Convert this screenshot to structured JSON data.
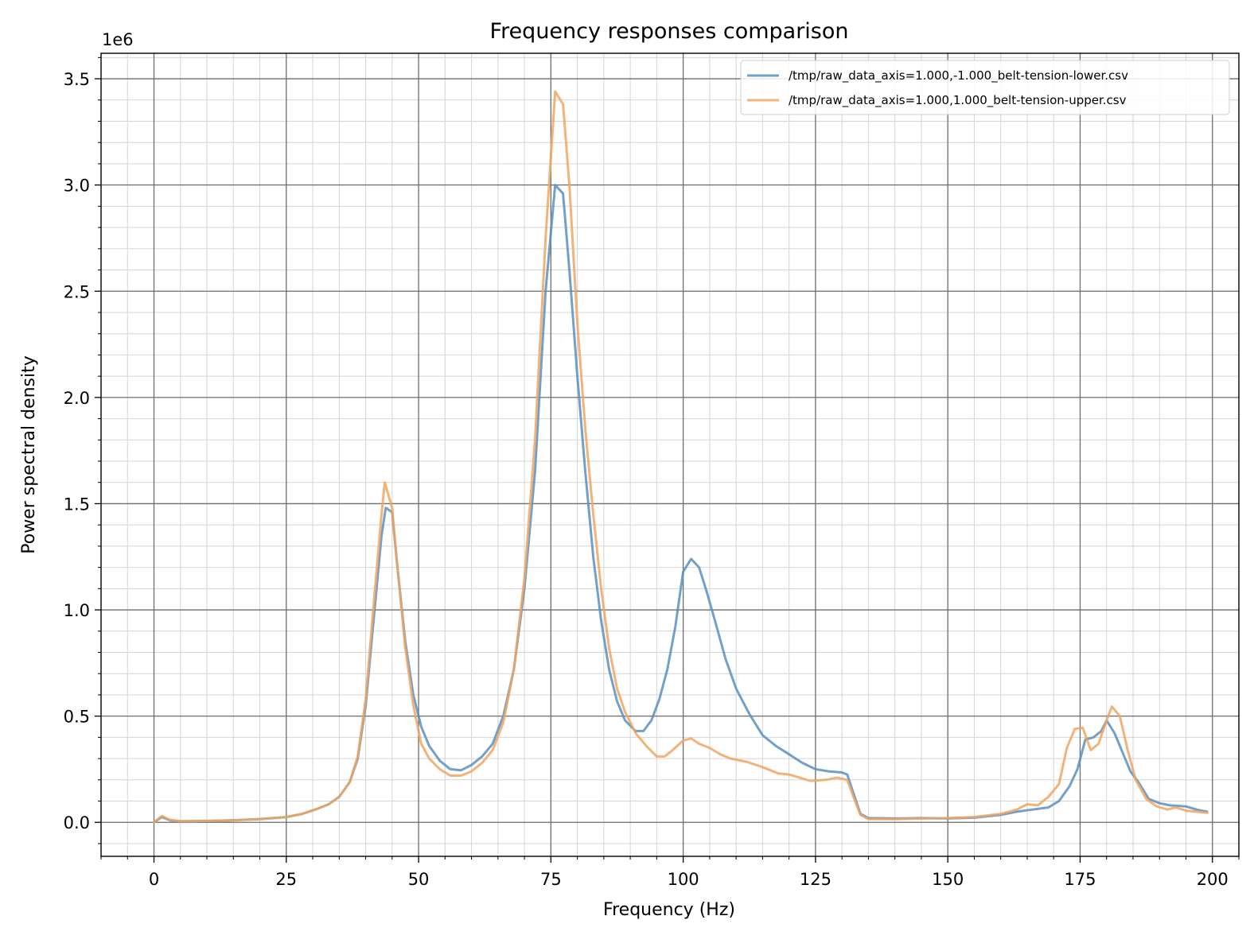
{
  "chart_data": {
    "type": "line",
    "title": "Frequency responses comparison",
    "xlabel": "Frequency (Hz)",
    "ylabel": "Power spectral density",
    "y_scale_label": "1e6",
    "xlim": [
      -10,
      205
    ],
    "ylim": [
      -0.16,
      3.62
    ],
    "x_ticks": [
      0,
      25,
      50,
      75,
      100,
      125,
      150,
      175,
      200
    ],
    "x_tick_labels": [
      "0",
      "25",
      "50",
      "75",
      "100",
      "125",
      "150",
      "175",
      "200"
    ],
    "y_ticks": [
      0.0,
      0.5,
      1.0,
      1.5,
      2.0,
      2.5,
      3.0,
      3.5
    ],
    "y_tick_labels": [
      "0.0",
      "0.5",
      "1.0",
      "1.5",
      "2.0",
      "2.5",
      "3.0",
      "3.5"
    ],
    "grid": true,
    "minor_grid": true,
    "legend_position": "top-right",
    "series": [
      {
        "name": "/tmp/raw_data_axis=1.000,-1.000_belt-tension-lower.csv",
        "color": "#5b8fc0",
        "points": [
          [
            0,
            0.0
          ],
          [
            1.5,
            0.025
          ],
          [
            3,
            0.01
          ],
          [
            5,
            0.005
          ],
          [
            10,
            0.006
          ],
          [
            15,
            0.01
          ],
          [
            20,
            0.015
          ],
          [
            25,
            0.025
          ],
          [
            28,
            0.04
          ],
          [
            31,
            0.065
          ],
          [
            33,
            0.085
          ],
          [
            35,
            0.12
          ],
          [
            37,
            0.19
          ],
          [
            38.5,
            0.3
          ],
          [
            40,
            0.55
          ],
          [
            41.5,
            0.95
          ],
          [
            43,
            1.35
          ],
          [
            43.8,
            1.48
          ],
          [
            45,
            1.46
          ],
          [
            46,
            1.2
          ],
          [
            47.5,
            0.85
          ],
          [
            49,
            0.6
          ],
          [
            50.5,
            0.45
          ],
          [
            52,
            0.36
          ],
          [
            54,
            0.29
          ],
          [
            56,
            0.25
          ],
          [
            58,
            0.245
          ],
          [
            60,
            0.27
          ],
          [
            62,
            0.31
          ],
          [
            64,
            0.37
          ],
          [
            66,
            0.5
          ],
          [
            68,
            0.72
          ],
          [
            70,
            1.1
          ],
          [
            72,
            1.65
          ],
          [
            74,
            2.5
          ],
          [
            75.8,
            3.0
          ],
          [
            77.3,
            2.96
          ],
          [
            78.5,
            2.6
          ],
          [
            80,
            2.1
          ],
          [
            81.5,
            1.65
          ],
          [
            83,
            1.25
          ],
          [
            84.5,
            0.95
          ],
          [
            86,
            0.72
          ],
          [
            87.5,
            0.57
          ],
          [
            89,
            0.48
          ],
          [
            91,
            0.43
          ],
          [
            92.5,
            0.43
          ],
          [
            94,
            0.48
          ],
          [
            95.5,
            0.58
          ],
          [
            97,
            0.72
          ],
          [
            98.5,
            0.92
          ],
          [
            100,
            1.18
          ],
          [
            101.5,
            1.24
          ],
          [
            103,
            1.2
          ],
          [
            104.5,
            1.08
          ],
          [
            106,
            0.95
          ],
          [
            108,
            0.77
          ],
          [
            110,
            0.63
          ],
          [
            112.5,
            0.51
          ],
          [
            115,
            0.41
          ],
          [
            117.5,
            0.36
          ],
          [
            120,
            0.32
          ],
          [
            122.5,
            0.28
          ],
          [
            125,
            0.25
          ],
          [
            127.5,
            0.24
          ],
          [
            130,
            0.235
          ],
          [
            131,
            0.225
          ],
          [
            132,
            0.15
          ],
          [
            133.5,
            0.04
          ],
          [
            135,
            0.02
          ],
          [
            140,
            0.018
          ],
          [
            145,
            0.02
          ],
          [
            150,
            0.018
          ],
          [
            155,
            0.022
          ],
          [
            160,
            0.035
          ],
          [
            163,
            0.05
          ],
          [
            166,
            0.06
          ],
          [
            169,
            0.07
          ],
          [
            171,
            0.1
          ],
          [
            173,
            0.17
          ],
          [
            174.5,
            0.25
          ],
          [
            176,
            0.39
          ],
          [
            177.5,
            0.4
          ],
          [
            179,
            0.43
          ],
          [
            180,
            0.48
          ],
          [
            181.5,
            0.42
          ],
          [
            183,
            0.33
          ],
          [
            184.5,
            0.24
          ],
          [
            186,
            0.19
          ],
          [
            188,
            0.11
          ],
          [
            190,
            0.09
          ],
          [
            192,
            0.08
          ],
          [
            195,
            0.075
          ],
          [
            197,
            0.06
          ],
          [
            199,
            0.05
          ]
        ]
      },
      {
        "name": "/tmp/raw_data_axis=1.000,1.000_belt-tension-upper.csv",
        "color": "#f0a560",
        "points": [
          [
            0,
            0.0
          ],
          [
            1.5,
            0.03
          ],
          [
            3,
            0.012
          ],
          [
            5,
            0.005
          ],
          [
            10,
            0.007
          ],
          [
            15,
            0.01
          ],
          [
            20,
            0.016
          ],
          [
            25,
            0.025
          ],
          [
            28,
            0.04
          ],
          [
            31,
            0.065
          ],
          [
            33,
            0.085
          ],
          [
            35,
            0.12
          ],
          [
            37,
            0.19
          ],
          [
            38.5,
            0.31
          ],
          [
            40,
            0.58
          ],
          [
            41.5,
            1.02
          ],
          [
            43,
            1.45
          ],
          [
            43.6,
            1.6
          ],
          [
            45,
            1.48
          ],
          [
            46,
            1.2
          ],
          [
            47.5,
            0.82
          ],
          [
            49,
            0.55
          ],
          [
            50.5,
            0.37
          ],
          [
            52,
            0.3
          ],
          [
            54,
            0.25
          ],
          [
            56,
            0.22
          ],
          [
            58,
            0.22
          ],
          [
            60,
            0.24
          ],
          [
            62,
            0.28
          ],
          [
            64,
            0.34
          ],
          [
            66,
            0.47
          ],
          [
            68,
            0.72
          ],
          [
            70,
            1.15
          ],
          [
            72,
            1.8
          ],
          [
            74,
            2.75
          ],
          [
            75.8,
            3.44
          ],
          [
            77.3,
            3.38
          ],
          [
            78.5,
            3.0
          ],
          [
            80,
            2.35
          ],
          [
            81.5,
            1.85
          ],
          [
            83,
            1.45
          ],
          [
            84.5,
            1.1
          ],
          [
            86,
            0.82
          ],
          [
            87.5,
            0.63
          ],
          [
            89,
            0.52
          ],
          [
            91,
            0.42
          ],
          [
            93,
            0.36
          ],
          [
            95,
            0.31
          ],
          [
            96.5,
            0.31
          ],
          [
            98,
            0.34
          ],
          [
            100,
            0.385
          ],
          [
            101.5,
            0.395
          ],
          [
            103,
            0.37
          ],
          [
            105,
            0.35
          ],
          [
            107,
            0.32
          ],
          [
            109,
            0.3
          ],
          [
            112,
            0.285
          ],
          [
            115,
            0.26
          ],
          [
            118,
            0.23
          ],
          [
            120,
            0.225
          ],
          [
            122,
            0.21
          ],
          [
            124,
            0.195
          ],
          [
            127,
            0.2
          ],
          [
            129,
            0.21
          ],
          [
            131,
            0.2
          ],
          [
            132,
            0.13
          ],
          [
            133.5,
            0.035
          ],
          [
            135,
            0.015
          ],
          [
            140,
            0.015
          ],
          [
            145,
            0.018
          ],
          [
            150,
            0.02
          ],
          [
            155,
            0.025
          ],
          [
            160,
            0.04
          ],
          [
            163,
            0.06
          ],
          [
            165,
            0.085
          ],
          [
            167,
            0.08
          ],
          [
            169,
            0.12
          ],
          [
            171,
            0.18
          ],
          [
            172.5,
            0.35
          ],
          [
            174,
            0.44
          ],
          [
            175.5,
            0.445
          ],
          [
            177,
            0.34
          ],
          [
            178.5,
            0.37
          ],
          [
            180,
            0.48
          ],
          [
            181,
            0.545
          ],
          [
            182.5,
            0.5
          ],
          [
            184,
            0.34
          ],
          [
            185.5,
            0.2
          ],
          [
            187.5,
            0.11
          ],
          [
            189.5,
            0.075
          ],
          [
            191.5,
            0.06
          ],
          [
            193,
            0.07
          ],
          [
            195,
            0.055
          ],
          [
            197,
            0.05
          ],
          [
            199,
            0.045
          ]
        ]
      }
    ]
  }
}
